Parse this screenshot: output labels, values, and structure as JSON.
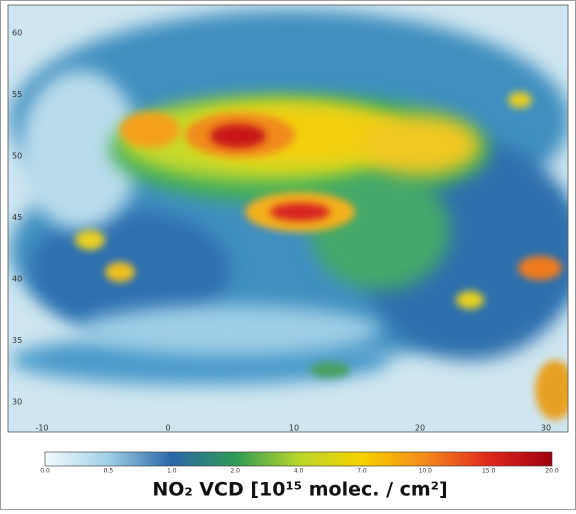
{
  "map": {
    "latitude_labels": [
      "60",
      "55",
      "50",
      "45",
      "40",
      "35",
      "30"
    ],
    "longitude_labels": [
      "-10",
      "0",
      "10",
      "20",
      "30"
    ],
    "colorbar": {
      "ticks": [
        "0.0",
        "0.5",
        "1.0",
        "2.0",
        "4.0",
        "7.0",
        "10.0",
        "15.0",
        "20.0"
      ],
      "colors": [
        "#f4fbfd",
        "#9fd0e6",
        "#2b66a8",
        "#2e9a57",
        "#b8d62a",
        "#f6d200",
        "#f58a1a",
        "#e0281c",
        "#a00010"
      ]
    },
    "title": "NO₂  VCD [10¹⁵ molec. / cm²]"
  }
}
